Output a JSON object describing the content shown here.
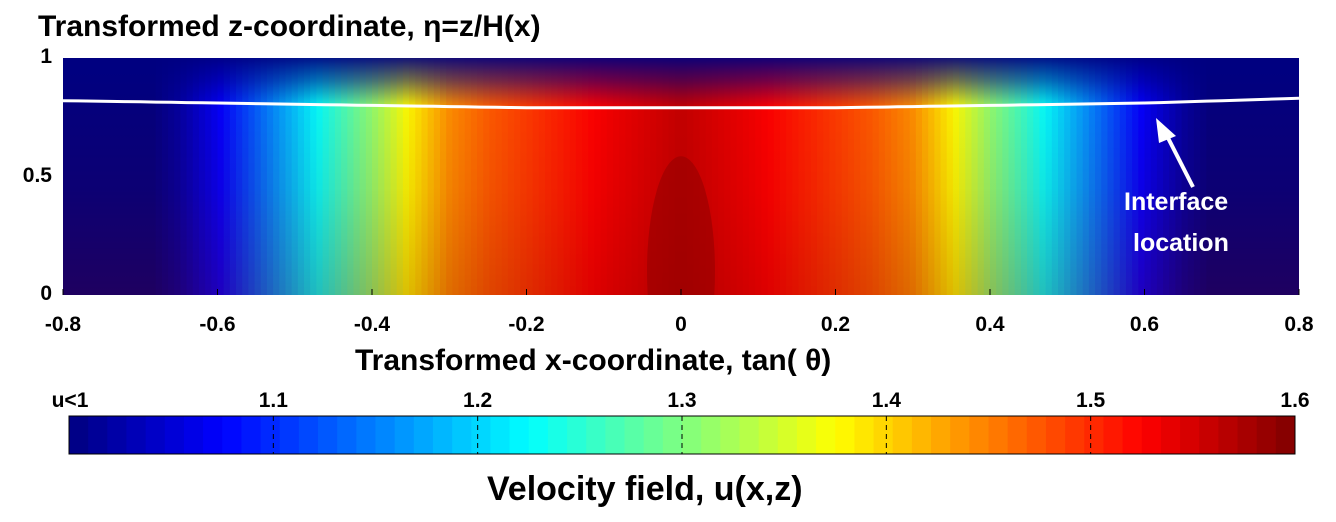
{
  "chart_data": {
    "type": "heatmap",
    "title": "Transformed z-coordinate,   η=z/H(x)",
    "ylabel": "Transformed z-coordinate,   η=z/H(x)",
    "xlabel": "Transformed x-coordinate, tan(   θ)",
    "xlim": [
      -0.8,
      0.8
    ],
    "ylim": [
      0,
      1
    ],
    "x_ticks": [
      "-0.8",
      "-0.6",
      "-0.4",
      "-0.2",
      "0",
      "0.2",
      "0.4",
      "0.6",
      "0.8"
    ],
    "x_tick_values": [
      -0.8,
      -0.6,
      -0.4,
      -0.2,
      0,
      0.2,
      0.4,
      0.6,
      0.8
    ],
    "y_ticks": [
      "0",
      "0.5",
      "1"
    ],
    "y_tick_values": [
      0,
      0.5,
      1
    ],
    "velocity_profile": {
      "x": [
        0,
        0.1,
        0.2,
        0.25,
        0.3,
        0.35,
        0.4,
        0.45,
        0.5,
        0.55,
        0.6,
        0.65,
        0.7,
        0.8
      ],
      "u": [
        1.56,
        1.53,
        1.49,
        1.47,
        1.44,
        1.38,
        1.31,
        1.25,
        1.19,
        1.13,
        1.07,
        1.02,
        0.99,
        0.97
      ],
      "u_max_at_bottom": 1.59
    },
    "interface": {
      "label_line1": "Interface",
      "label_line2": "location",
      "x": [
        -0.8,
        -0.6,
        -0.4,
        -0.2,
        0,
        0.2,
        0.4,
        0.6,
        0.8
      ],
      "eta": [
        0.82,
        0.81,
        0.8,
        0.79,
        0.79,
        0.79,
        0.8,
        0.81,
        0.83
      ],
      "color": "#ffffff"
    },
    "colorbar": {
      "label": "Velocity field, u(x,z)",
      "range": [
        1.0,
        1.6
      ],
      "ticks": [
        "u<1",
        "1.1",
        "1.2",
        "1.3",
        "1.4",
        "1.5",
        "1.6"
      ],
      "tick_values": [
        1.0,
        1.1,
        1.2,
        1.3,
        1.4,
        1.5,
        1.6
      ],
      "colormap": "jet"
    }
  }
}
